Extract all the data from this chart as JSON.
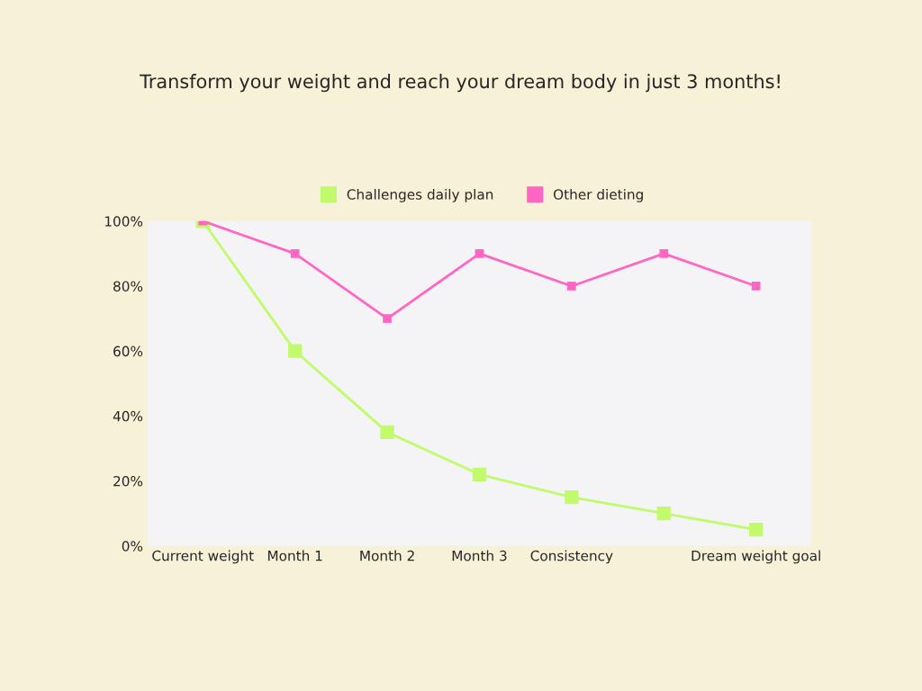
{
  "chart_data": {
    "type": "line",
    "title": "Transform your weight and reach your dream body in just 3 months!",
    "categories": [
      "Current weight",
      "Month 1",
      "Month 2",
      "Month 3",
      "Consistency",
      null,
      "Dream weight goal"
    ],
    "series": [
      {
        "name": "Challenges daily plan",
        "color": "#c1fa6b",
        "values": [
          100,
          60,
          35,
          22,
          15,
          10,
          5
        ]
      },
      {
        "name": "Other dieting",
        "color": "#ff66c4",
        "values": [
          100,
          90,
          70,
          90,
          80,
          90,
          80
        ]
      }
    ],
    "ylim": [
      0,
      100
    ],
    "yticks": [
      {
        "value": 0,
        "label": "0%"
      },
      {
        "value": 20,
        "label": "20%"
      },
      {
        "value": 40,
        "label": "40%"
      },
      {
        "value": 60,
        "label": "60%"
      },
      {
        "value": 80,
        "label": "80%"
      },
      {
        "value": 100,
        "label": "100%"
      }
    ],
    "grid": false,
    "legend": "top",
    "marker": "square",
    "line_style": "solid"
  }
}
